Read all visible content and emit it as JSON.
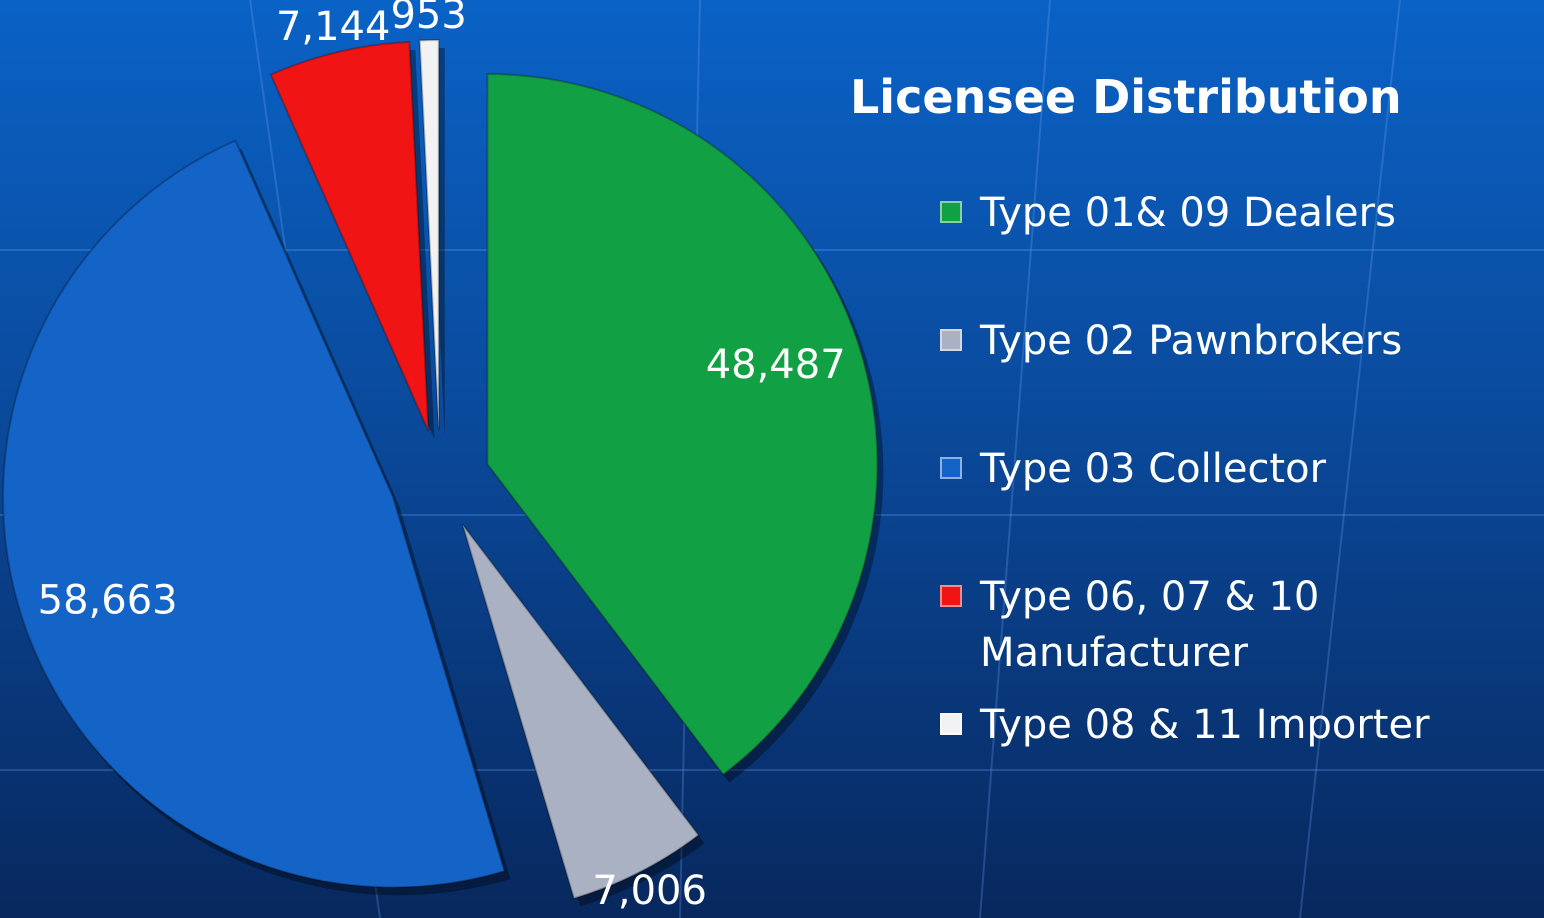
{
  "chart_data": {
    "type": "pie",
    "title": "Licensee Distribution",
    "categories": [
      "Type 01& 09 Dealers",
      "Type 02 Pawnbrokers",
      "Type 03 Collector",
      "Type 06, 07 & 10 Manufacturer",
      "Type 08 & 11 Importer"
    ],
    "values": [
      48487,
      7006,
      58663,
      7144,
      953
    ],
    "value_labels": [
      "48,487",
      "7,006",
      "58,663",
      "7,144",
      "953"
    ],
    "colors": [
      "#12a045",
      "#a9b1c2",
      "#1464c8",
      "#f01414",
      "#f2f2f2"
    ],
    "legend": "right"
  }
}
